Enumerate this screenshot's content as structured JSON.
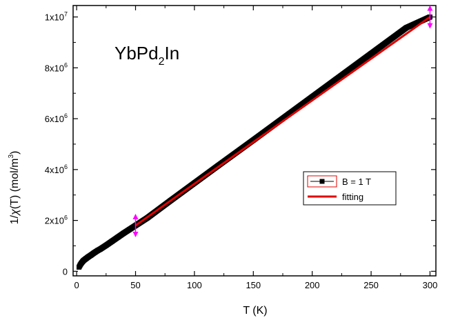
{
  "chart_data": {
    "type": "scatter",
    "annotation": {
      "prefix": "YbPd",
      "sub": "2",
      "suffix": "In"
    },
    "xlabel": "T (K)",
    "ylabel": {
      "prefix": "1/",
      "chi": "χ",
      "mid": "(T)  (mol/m",
      "sup": "3",
      "suffix": ")"
    },
    "xlim": [
      -3,
      305
    ],
    "ylim": [
      -180000,
      10450000
    ],
    "x_ticks": [
      0,
      50,
      100,
      150,
      200,
      250,
      300
    ],
    "x_tick_labels": [
      "0",
      "50",
      "100",
      "150",
      "200",
      "250",
      "300"
    ],
    "y_ticks": [
      0,
      2000000,
      4000000,
      6000000,
      8000000,
      10000000
    ],
    "y_tick_labels": [
      {
        "base": "0",
        "exp": ""
      },
      {
        "base": "2x10",
        "exp": "6"
      },
      {
        "base": "4x10",
        "exp": "6"
      },
      {
        "base": "6x10",
        "exp": "6"
      },
      {
        "base": "8x10",
        "exp": "6"
      },
      {
        "base": "1x10",
        "exp": "7"
      }
    ],
    "grid": false,
    "legend_position": "center-right",
    "legend": [
      {
        "label": "B = 1 T",
        "marker": "square",
        "color": "#000000"
      },
      {
        "label": "fitting",
        "marker": "line",
        "color": "#e00000"
      }
    ],
    "series": [
      {
        "name": "B = 1 T",
        "marker": "square",
        "color": "#000000",
        "x": [
          2,
          3,
          4,
          5,
          6,
          8,
          10,
          12,
          15,
          18,
          20,
          25,
          30,
          35,
          40,
          45,
          50,
          60,
          80,
          100,
          120,
          150,
          180,
          200,
          220,
          250,
          280,
          300
        ],
        "y": [
          160000,
          250000,
          320000,
          380000,
          430000,
          500000,
          570000,
          630000,
          730000,
          820000,
          870000,
          1020000,
          1180000,
          1340000,
          1500000,
          1650000,
          1800000,
          2100000,
          2790000,
          3470000,
          4150000,
          5160000,
          6180000,
          6860000,
          7540000,
          8560000,
          9580000,
          10000000
        ]
      },
      {
        "name": "fitting",
        "marker": "line",
        "color": "#e00000",
        "x": [
          50,
          300
        ],
        "y": [
          1800000,
          10000000
        ]
      }
    ],
    "fit_range_markers": [
      {
        "x": 50,
        "y": 1800000
      },
      {
        "x": 300,
        "y": 10000000
      }
    ],
    "marker_color": "#ff00ff"
  }
}
